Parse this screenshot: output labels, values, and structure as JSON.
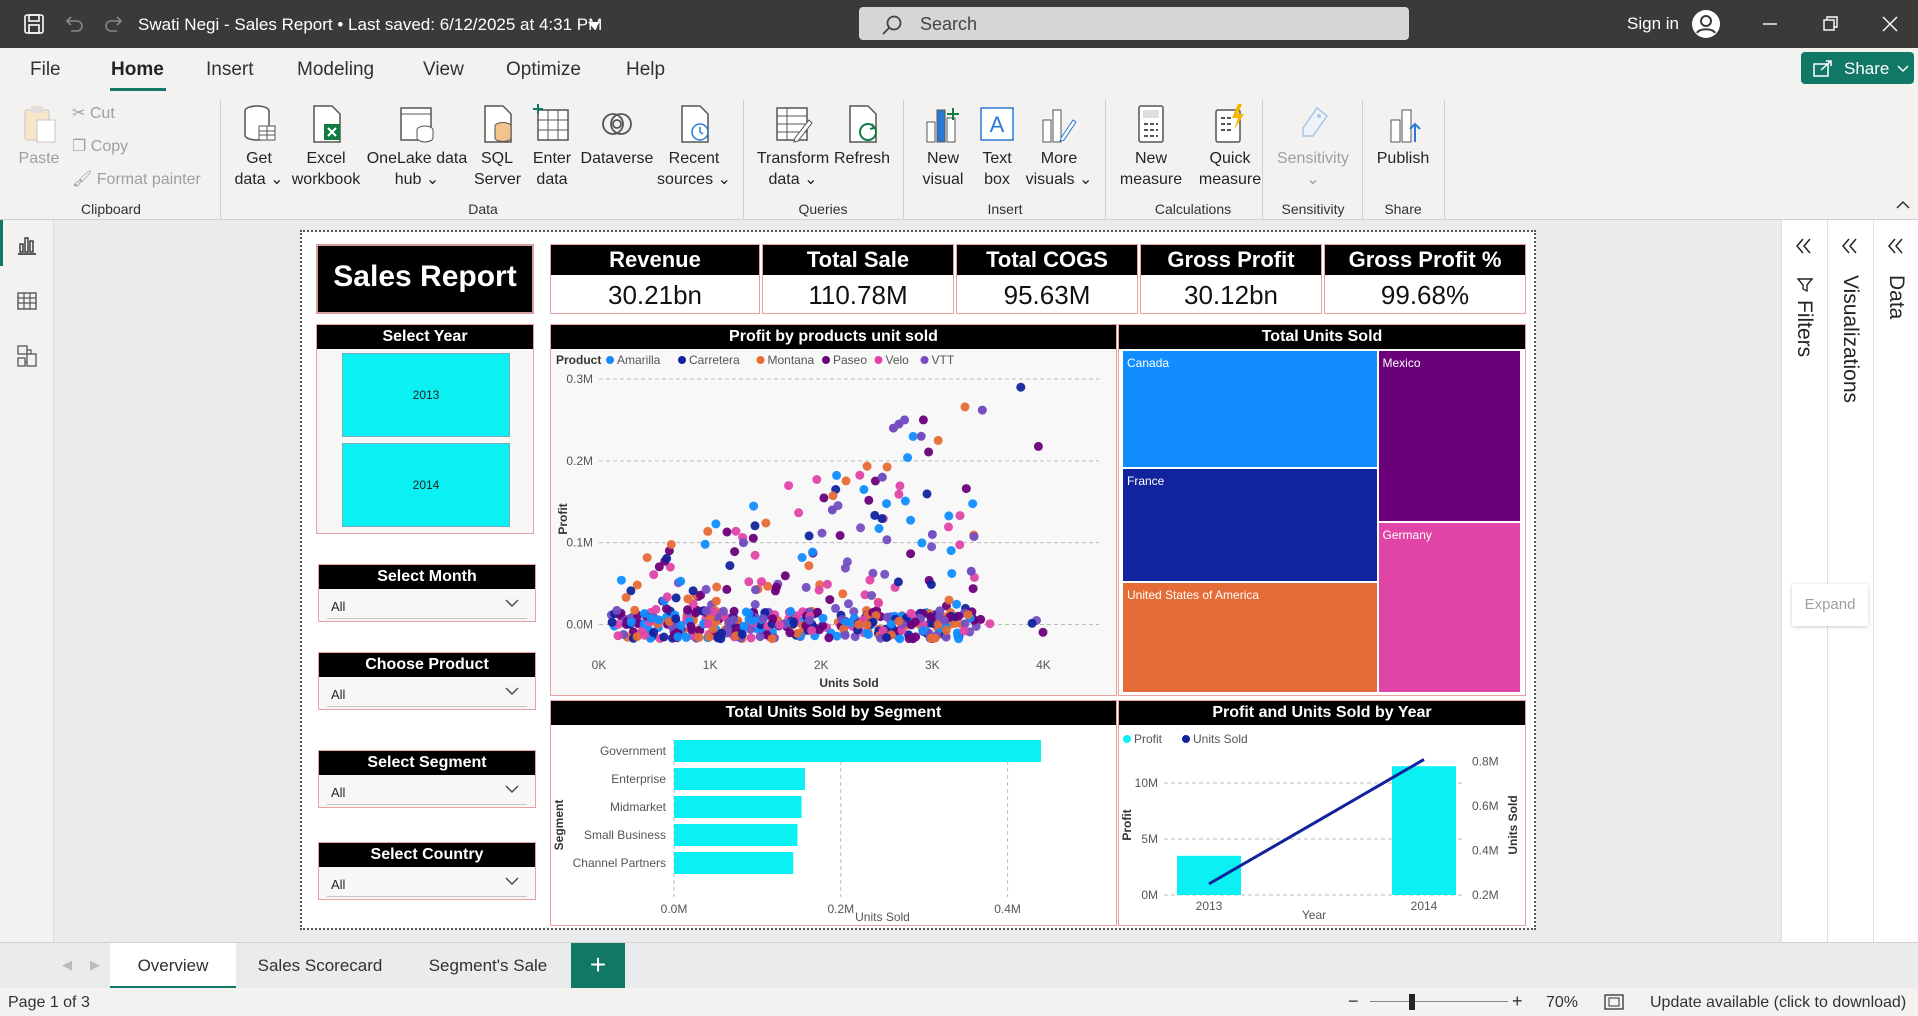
{
  "titlebar": {
    "title": "Swati Negi - Sales Report • Last saved: 6/12/2025 at 4:31 PM",
    "search_placeholder": "Search",
    "sign_in": "Sign in"
  },
  "menu": {
    "tabs": [
      "File",
      "Home",
      "Insert",
      "Modeling",
      "View",
      "Optimize",
      "Help"
    ],
    "active": "Home",
    "share": "Share"
  },
  "ribbon": {
    "clipboard": {
      "paste": "Paste",
      "cut": "Cut",
      "copy": "Copy",
      "format_painter": "Format painter",
      "group": "Clipboard"
    },
    "data": {
      "get_data": [
        "Get",
        "data"
      ],
      "excel": [
        "Excel",
        "workbook"
      ],
      "onelake": [
        "OneLake data",
        "hub"
      ],
      "sql": [
        "SQL",
        "Server"
      ],
      "enter": [
        "Enter",
        "data"
      ],
      "dataverse": "Dataverse",
      "recent": [
        "Recent",
        "sources"
      ],
      "group": "Data"
    },
    "queries": {
      "transform": [
        "Transform",
        "data"
      ],
      "refresh": "Refresh",
      "group": "Queries"
    },
    "insert": {
      "new_visual": [
        "New",
        "visual"
      ],
      "text_box": [
        "Text",
        "box"
      ],
      "more_visuals": [
        "More",
        "visuals"
      ],
      "group": "Insert"
    },
    "calculations": {
      "new_measure": [
        "New",
        "measure"
      ],
      "quick_measure": [
        "Quick",
        "measure"
      ],
      "group": "Calculations"
    },
    "sensitivity": {
      "label": "Sensitivity",
      "group": "Sensitivity"
    },
    "share": {
      "publish": "Publish",
      "group": "Share"
    }
  },
  "panes": {
    "filters": "Filters",
    "visualizations": "Visualizations",
    "data": "Data",
    "expand": "Expand"
  },
  "report": {
    "title": "Sales Report",
    "kpis": [
      {
        "label": "Revenue",
        "value": "30.21bn"
      },
      {
        "label": "Total Sale",
        "value": "110.78M"
      },
      {
        "label": "Total COGS",
        "value": "95.63M"
      },
      {
        "label": "Gross Profit",
        "value": "30.12bn"
      },
      {
        "label": "Gross Profit %",
        "value": "99.68%"
      }
    ],
    "slicers": {
      "year": {
        "title": "Select Year",
        "options": [
          "2013",
          "2014"
        ]
      },
      "month": {
        "title": "Select Month",
        "value": "All"
      },
      "product": {
        "title": "Choose Product",
        "value": "All"
      },
      "segment": {
        "title": "Select Segment",
        "value": "All"
      },
      "country": {
        "title": "Select Country",
        "value": "All"
      }
    },
    "treemap_title": "Total Units Sold"
  },
  "chart_data": [
    {
      "type": "scatter",
      "title": "Profit by products unit sold",
      "xlabel": "Units Sold",
      "ylabel": "Profit",
      "legend_title": "Product",
      "x_ticks": [
        "0K",
        "1K",
        "2K",
        "3K",
        "4K"
      ],
      "y_ticks": [
        "0.0M",
        "0.1M",
        "0.2M",
        "0.3M"
      ],
      "xlim": [
        0,
        4500
      ],
      "ylim": [
        -0.03,
        0.3
      ],
      "series": [
        {
          "name": "Amarilla",
          "color": "#118dff"
        },
        {
          "name": "Carretera",
          "color": "#12239e"
        },
        {
          "name": "Montana",
          "color": "#e66c37"
        },
        {
          "name": "Paseo",
          "color": "#6b007b"
        },
        {
          "name": "Velo",
          "color": "#e044a7"
        },
        {
          "name": "VTT",
          "color": "#744ec2"
        }
      ],
      "highlights": [
        [
          2650,
          0.24
        ],
        [
          2700,
          0.245
        ],
        [
          2750,
          0.25
        ],
        [
          3450,
          0.262
        ],
        [
          2900,
          0.23
        ],
        [
          2550,
          0.18
        ],
        [
          3000,
          0.11
        ],
        [
          3350,
          0.065
        ],
        [
          2100,
          0.14
        ],
        [
          1300,
          0.1
        ]
      ]
    },
    {
      "type": "treemap",
      "title": "Total Units Sold",
      "categories": [
        "Canada",
        "France",
        "United States of America",
        "Mexico",
        "Germany"
      ],
      "values": [
        247428,
        240931,
        232627,
        203325,
        201494
      ],
      "colors": [
        "#118dff",
        "#12239e",
        "#e66c37",
        "#6b007b",
        "#e044a7"
      ]
    },
    {
      "type": "bar",
      "title": "Total Units Sold by Segment",
      "xlabel": "Units Sold",
      "ylabel": "Segment",
      "categories": [
        "Government",
        "Enterprise",
        "Midmarket",
        "Small Business",
        "Channel Partners"
      ],
      "values": [
        0.44,
        0.157,
        0.153,
        0.148,
        0.143
      ],
      "x_ticks": [
        "0.0M",
        "0.2M",
        "0.4M"
      ],
      "xlim": [
        0,
        0.5
      ],
      "color": "#0af0f3"
    },
    {
      "type": "bar+line",
      "title": "Profit and Units Sold by Year",
      "xlabel": "Year",
      "ylabel": "Profit",
      "y2label": "Units Sold",
      "categories": [
        "2013",
        "2014"
      ],
      "series": [
        {
          "name": "Profit",
          "type": "bar",
          "values": [
            3.5,
            11.5
          ],
          "color": "#0af0f3"
        },
        {
          "name": "Units Sold",
          "type": "line",
          "values": [
            0.25,
            0.81
          ],
          "color": "#12239e"
        }
      ],
      "y_ticks": [
        "0M",
        "5M",
        "10M"
      ],
      "y2_ticks": [
        "0.2M",
        "0.4M",
        "0.6M",
        "0.8M"
      ]
    }
  ],
  "pages": {
    "tabs": [
      "Overview",
      "Sales Scorecard",
      "Segment's Sale"
    ],
    "active": "Overview"
  },
  "status": {
    "page": "Page 1 of 3",
    "zoom": "70%",
    "update": "Update available (click to download)"
  }
}
